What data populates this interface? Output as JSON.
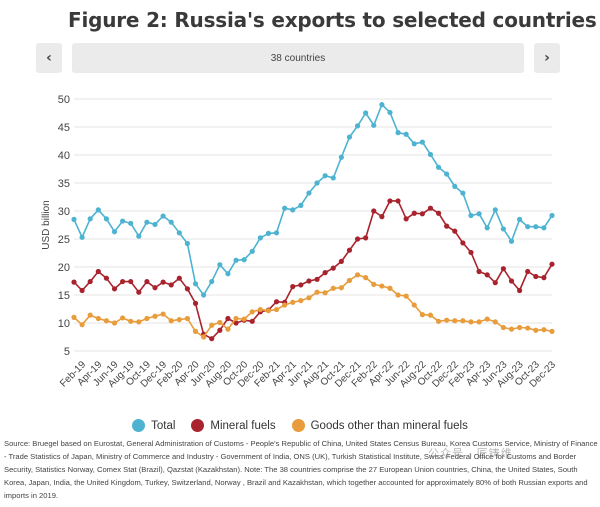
{
  "figure_title": "Figure 2: Russia's exports to selected countries",
  "navigation": {
    "prev_symbol": "‹",
    "next_symbol": "›",
    "selected_option": "38 countries"
  },
  "source_text": "Source: Bruegel based on Eurostat, General Administration of Customs - People's Republic of China, United States Census Bureau, Korea Customs Service, Ministry of Finance - Trade Statistics of Japan, Ministry of Commerce and Industry - Government of India, ONS (UK), Turkish Statistical Institute, Swiss Federal Office for Customs and Border Security, Statistics Norway, Comex Stat (Brazil), Qazstat (Kazakhstan). Note: The 38 countries comprise the 27 European Union countries, China, the United States, South Korea, Japan, India, the United Kingdom, Turkey, Switzerland, Norway , Brazil and Kazakhstan, which together accounted for approximately 80% of both Russian exports and imports in 2019.",
  "watermark": "公众号 · 匠铸维",
  "chart_data": {
    "type": "line",
    "title": "Figure 2: Russia's exports to selected countries",
    "ylabel": "USD billion",
    "xlabel": "",
    "ylim": [
      5,
      50
    ],
    "yticks": [
      5,
      10,
      15,
      20,
      25,
      30,
      35,
      40,
      45,
      50
    ],
    "grid": true,
    "legend_position": "bottom",
    "x": [
      "Jan-19",
      "Feb-19",
      "Mar-19",
      "Apr-19",
      "May-19",
      "Jun-19",
      "Jul-19",
      "Aug-19",
      "Sep-19",
      "Oct-19",
      "Nov-19",
      "Dec-19",
      "Jan-20",
      "Feb-20",
      "Mar-20",
      "Apr-20",
      "May-20",
      "Jun-20",
      "Jul-20",
      "Aug-20",
      "Sep-20",
      "Oct-20",
      "Nov-20",
      "Dec-20",
      "Jan-21",
      "Feb-21",
      "Mar-21",
      "Apr-21",
      "May-21",
      "Jun-21",
      "Jul-21",
      "Aug-21",
      "Sep-21",
      "Oct-21",
      "Nov-21",
      "Dec-21",
      "Jan-22",
      "Feb-22",
      "Mar-22",
      "Apr-22",
      "May-22",
      "Jun-22",
      "Jul-22",
      "Aug-22",
      "Sep-22",
      "Oct-22",
      "Nov-22",
      "Dec-22",
      "Jan-23",
      "Feb-23",
      "Mar-23",
      "Apr-23",
      "May-23",
      "Jun-23",
      "Jul-23",
      "Aug-23",
      "Sep-23",
      "Oct-23",
      "Nov-23",
      "Dec-23"
    ],
    "tick_labels": [
      "Feb-19",
      "Apr-19",
      "Jun-19",
      "Aug-19",
      "Oct-19",
      "Dec-19",
      "Feb-20",
      "Apr-20",
      "Jun-20",
      "Aug-20",
      "Oct-20",
      "Dec-20",
      "Feb-21",
      "Apr-21",
      "Jun-21",
      "Aug-21",
      "Oct-21",
      "Dec-21",
      "Feb-22",
      "Apr-22",
      "Jun-22",
      "Aug-22",
      "Oct-22",
      "Dec-22",
      "Feb-23",
      "Apr-23",
      "Jun-23",
      "Aug-23",
      "Oct-23",
      "Dec-23"
    ],
    "series": [
      {
        "name": "Total",
        "color": "#4db3d1",
        "values": [
          28.5,
          25.3,
          28.6,
          30.2,
          28.6,
          26.3,
          28.2,
          27.8,
          25.5,
          28.0,
          27.6,
          29.1,
          28.0,
          26.1,
          24.2,
          17.0,
          15.0,
          17.4,
          20.4,
          18.8,
          21.2,
          21.3,
          22.8,
          25.2,
          26.0,
          26.1,
          30.5,
          30.2,
          31.0,
          33.2,
          35.0,
          36.3,
          35.9,
          39.6,
          43.2,
          45.2,
          47.5,
          45.3,
          49.0,
          47.6,
          44.0,
          43.7,
          42.0,
          42.3,
          40.1,
          37.8,
          36.6,
          34.4,
          33.2,
          29.2,
          29.5,
          27.0,
          30.2,
          26.8,
          24.6,
          28.5,
          27.2,
          27.2,
          27.0,
          29.2
        ]
      },
      {
        "name": "Mineral fuels",
        "color": "#a8232d",
        "values": [
          17.3,
          15.8,
          17.4,
          19.2,
          18.0,
          16.1,
          17.4,
          17.4,
          15.5,
          17.4,
          16.3,
          17.3,
          16.8,
          18.0,
          16.1,
          13.5,
          8.0,
          7.2,
          8.7,
          10.8,
          10.0,
          10.5,
          10.3,
          12.0,
          12.3,
          13.8,
          13.7,
          16.5,
          16.8,
          17.5,
          17.8,
          19.0,
          19.8,
          21.0,
          23.0,
          25.0,
          25.2,
          30.0,
          29.0,
          31.8,
          31.8,
          28.6,
          29.6,
          29.5,
          30.5,
          29.6,
          27.3,
          26.4,
          24.3,
          22.6,
          19.2,
          18.6,
          17.2,
          19.7,
          17.5,
          15.8,
          19.2,
          18.3,
          18.1,
          20.5
        ]
      },
      {
        "name": "Goods other than mineral fuels",
        "color": "#e89c3b",
        "values": [
          11.0,
          9.7,
          11.4,
          10.8,
          10.4,
          10.0,
          10.9,
          10.3,
          10.2,
          10.8,
          11.2,
          11.6,
          10.4,
          10.6,
          10.8,
          8.5,
          7.5,
          9.6,
          10.1,
          8.9,
          10.8,
          10.7,
          12.0,
          12.4,
          12.2,
          12.4,
          13.2,
          13.7,
          14.0,
          14.5,
          15.5,
          15.4,
          16.2,
          16.3,
          17.6,
          18.6,
          18.1,
          16.9,
          16.6,
          16.2,
          15.0,
          14.8,
          13.2,
          11.5,
          11.4,
          10.3,
          10.5,
          10.4,
          10.4,
          10.2,
          10.2,
          10.7,
          10.2,
          9.2,
          8.9,
          9.2,
          9.1,
          8.7,
          8.8,
          8.5
        ]
      }
    ]
  }
}
